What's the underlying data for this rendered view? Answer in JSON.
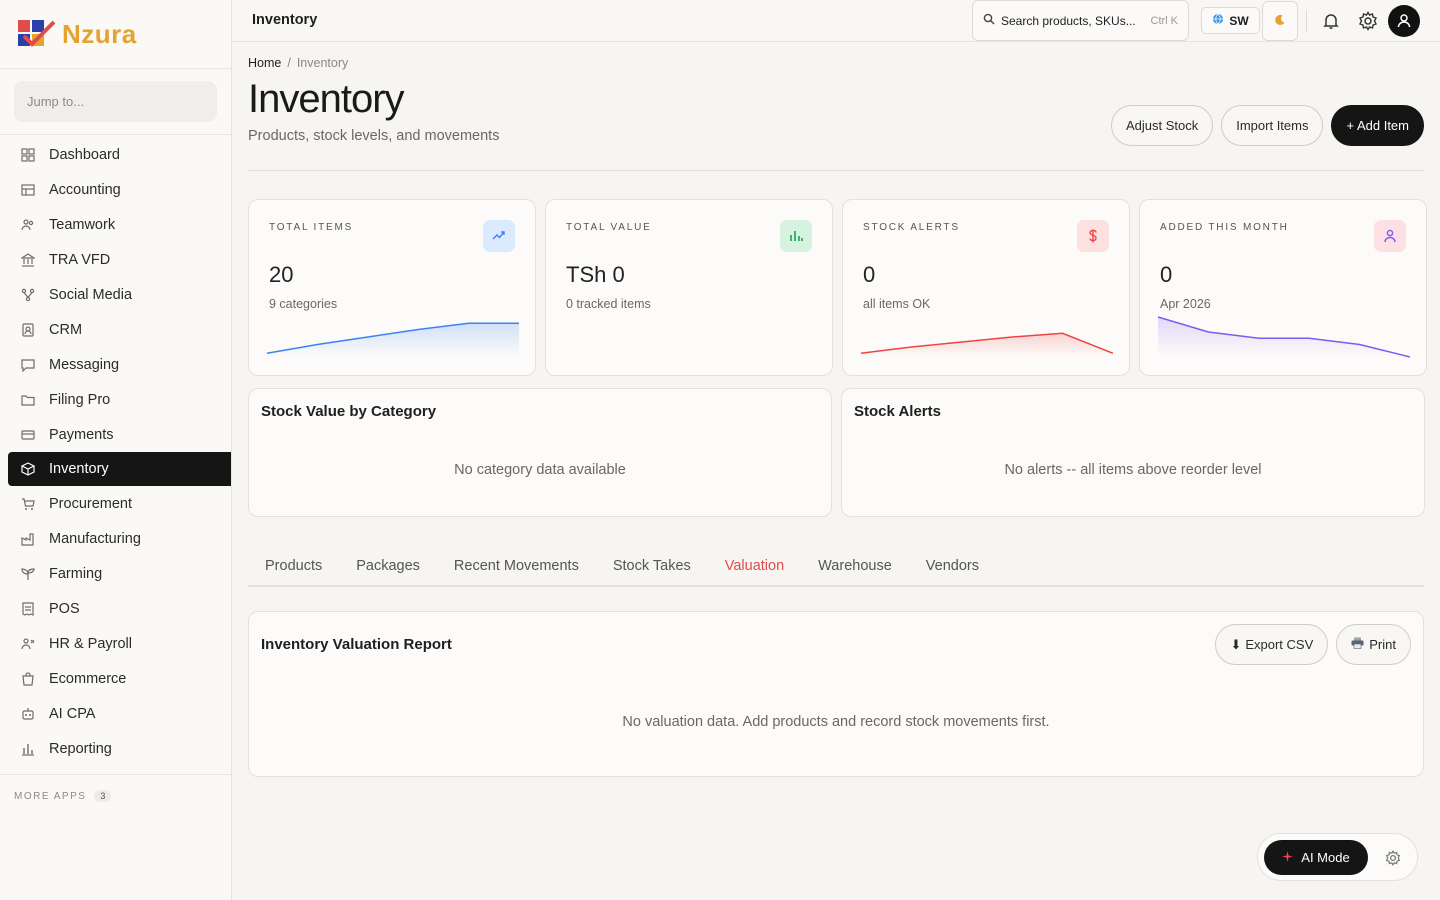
{
  "app": {
    "brand": "Nzura",
    "colors": {
      "accent": "#e14b4b",
      "dark": "#151515",
      "brand_gold": "#e5a230"
    }
  },
  "sidebar": {
    "jump_placeholder": "Jump to...",
    "items": [
      {
        "label": "Dashboard",
        "icon": "dashboard-icon"
      },
      {
        "label": "Accounting",
        "icon": "ledger-icon"
      },
      {
        "label": "Teamwork",
        "icon": "team-icon"
      },
      {
        "label": "TRA VFD",
        "icon": "building-icon"
      },
      {
        "label": "Social Media",
        "icon": "share-icon"
      },
      {
        "label": "CRM",
        "icon": "contact-icon"
      },
      {
        "label": "Messaging",
        "icon": "chat-icon"
      },
      {
        "label": "Filing Pro",
        "icon": "folder-icon"
      },
      {
        "label": "Payments",
        "icon": "card-icon"
      },
      {
        "label": "Inventory",
        "icon": "box-icon",
        "active": true
      },
      {
        "label": "Procurement",
        "icon": "cart-icon"
      },
      {
        "label": "Manufacturing",
        "icon": "factory-icon"
      },
      {
        "label": "Farming",
        "icon": "plant-icon"
      },
      {
        "label": "POS",
        "icon": "receipt-icon"
      },
      {
        "label": "HR & Payroll",
        "icon": "people-icon"
      },
      {
        "label": "Ecommerce",
        "icon": "bag-icon"
      },
      {
        "label": "AI CPA",
        "icon": "robot-icon"
      },
      {
        "label": "Reporting",
        "icon": "bar-chart-icon"
      }
    ],
    "more_apps_label": "MORE APPS",
    "more_apps_count": "3"
  },
  "header": {
    "title": "Inventory",
    "search_placeholder": "Search products, SKUs...",
    "search_shortcut": "Ctrl K",
    "language": "SW"
  },
  "page": {
    "breadcrumb": {
      "home": "Home",
      "current": "Inventory"
    },
    "title": "Inventory",
    "subtitle": "Products, stock levels, and movements",
    "actions": {
      "adjust": "Adjust Stock",
      "import": "Import Items",
      "add": "+ Add Item"
    }
  },
  "stats": [
    {
      "label": "TOTAL ITEMS",
      "value": "20",
      "note": "9 categories",
      "icon": "trending-up-icon",
      "color": "#3b82f6",
      "bg": "#dbeafe",
      "trend": [
        3,
        10,
        16,
        22,
        27,
        27
      ]
    },
    {
      "label": "TOTAL VALUE",
      "value": "TSh 0",
      "note": "0 tracked items",
      "icon": "bar-chart-icon",
      "color": "#22a05a",
      "bg": "#d6f3e0",
      "trend": []
    },
    {
      "label": "STOCK ALERTS",
      "value": "0",
      "note": "all items OK",
      "icon": "dollar-icon",
      "color": "#ef4444",
      "bg": "#fde0e0",
      "trend": [
        3,
        8,
        12,
        16,
        19,
        3
      ]
    },
    {
      "label": "ADDED THIS MONTH",
      "value": "0",
      "note": "Apr 2026",
      "icon": "user-icon",
      "color": "#7c5cf0",
      "bg": "#fde0e3",
      "trend": [
        32,
        20,
        15,
        15,
        10,
        0
      ]
    }
  ],
  "panels": {
    "category": {
      "title": "Stock Value by Category",
      "empty": "No category data available"
    },
    "alerts": {
      "title": "Stock Alerts",
      "empty": "No alerts -- all items above reorder level"
    }
  },
  "tabs": [
    {
      "label": "Products"
    },
    {
      "label": "Packages"
    },
    {
      "label": "Recent Movements"
    },
    {
      "label": "Stock Takes"
    },
    {
      "label": "Valuation",
      "active": true
    },
    {
      "label": "Warehouse"
    },
    {
      "label": "Vendors"
    }
  ],
  "report": {
    "title": "Inventory Valuation Report",
    "export_label": "Export CSV",
    "print_label": "Print",
    "empty": "No valuation data. Add products and record stock movements first."
  },
  "ai": {
    "mode_label": "AI Mode"
  }
}
